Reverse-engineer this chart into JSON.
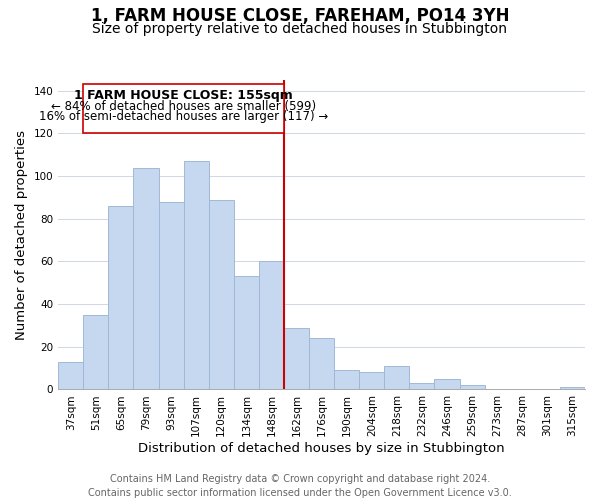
{
  "title": "1, FARM HOUSE CLOSE, FAREHAM, PO14 3YH",
  "subtitle": "Size of property relative to detached houses in Stubbington",
  "xlabel": "Distribution of detached houses by size in Stubbington",
  "ylabel": "Number of detached properties",
  "bar_labels": [
    "37sqm",
    "51sqm",
    "65sqm",
    "79sqm",
    "93sqm",
    "107sqm",
    "120sqm",
    "134sqm",
    "148sqm",
    "162sqm",
    "176sqm",
    "190sqm",
    "204sqm",
    "218sqm",
    "232sqm",
    "246sqm",
    "259sqm",
    "273sqm",
    "287sqm",
    "301sqm",
    "315sqm"
  ],
  "bar_heights": [
    13,
    35,
    86,
    104,
    88,
    107,
    89,
    53,
    60,
    29,
    24,
    9,
    8,
    11,
    3,
    5,
    2,
    0,
    0,
    0,
    1
  ],
  "bar_color": "#c5d8f0",
  "bar_edge_color": "#a0b8d8",
  "property_label": "1 FARM HOUSE CLOSE: 155sqm",
  "pct_smaller": 84,
  "count_smaller": 599,
  "pct_larger": 16,
  "count_larger": 117,
  "vline_x_index": 8.5,
  "vline_color": "#cc0000",
  "annotation_box_color": "#cc0000",
  "ylim": [
    0,
    145
  ],
  "yticks": [
    0,
    20,
    40,
    60,
    80,
    100,
    120,
    140
  ],
  "footer_line1": "Contains HM Land Registry data © Crown copyright and database right 2024.",
  "footer_line2": "Contains public sector information licensed under the Open Government Licence v3.0.",
  "title_fontsize": 12,
  "subtitle_fontsize": 10,
  "axis_label_fontsize": 9.5,
  "tick_fontsize": 7.5,
  "annotation_fontsize_title": 9,
  "annotation_fontsize_body": 8.5,
  "footer_fontsize": 7,
  "background_color": "#ffffff",
  "grid_color": "#d0d8e8"
}
